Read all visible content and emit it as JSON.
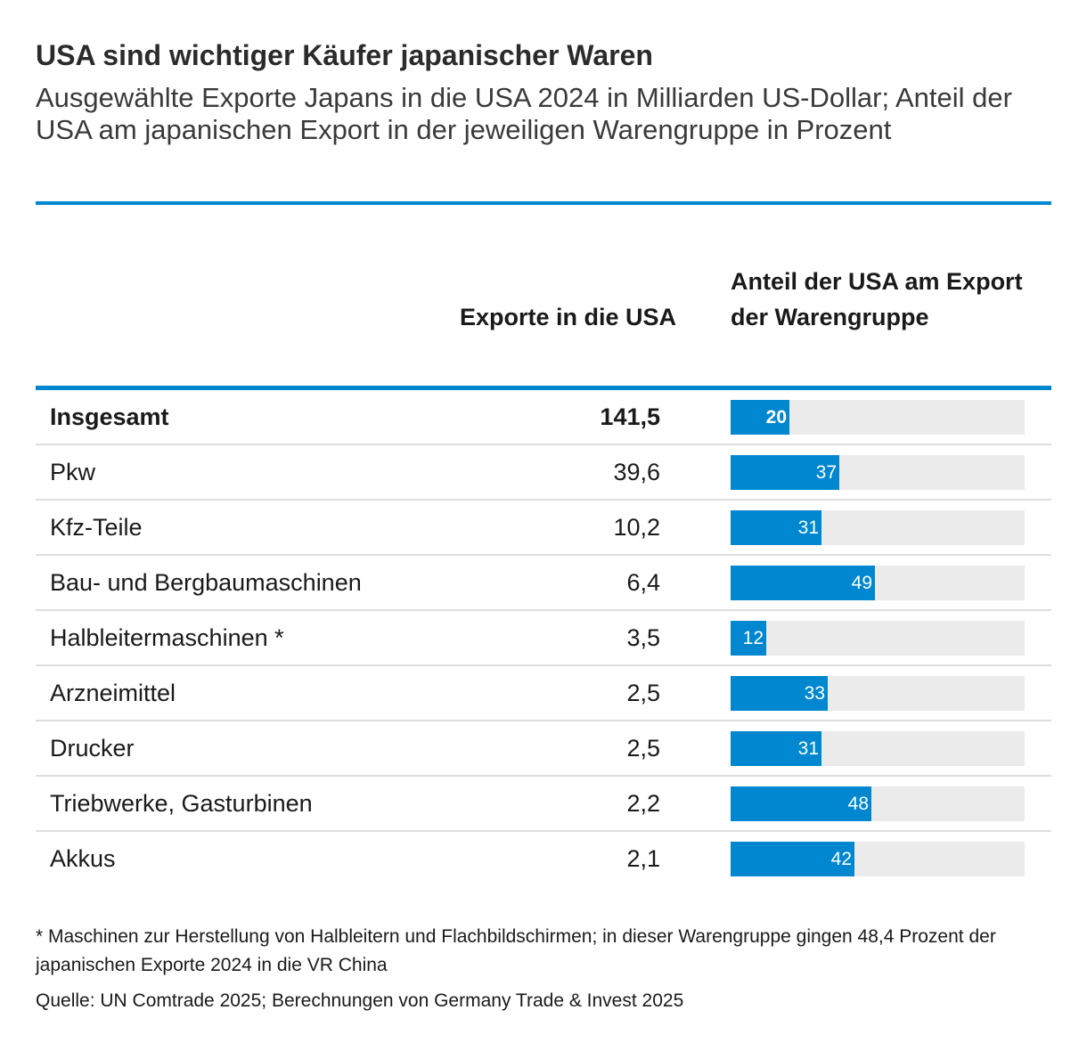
{
  "header": {
    "title": "USA sind wichtiger Käufer japanischer Waren",
    "subtitle": "Ausgewählte Exporte Japans in die USA 2024 in Milliarden US-Dollar; Anteil der USA am japanischen Export in der jeweiligen Warengruppe in Prozent"
  },
  "colors": {
    "accent": "#0087cf",
    "track": "#ebebeb",
    "divider": "#dedede"
  },
  "chart_data": {
    "type": "table",
    "title": "USA sind wichtiger Käufer japanischer Waren",
    "columns": {
      "category": "",
      "exports": "Exporte in die USA",
      "share": "Anteil der USA am Export der Warengruppe"
    },
    "share_axis_max": 100,
    "rows": [
      {
        "category": "Insgesamt",
        "exports": "141,5",
        "share": 20,
        "total": true
      },
      {
        "category": "Pkw",
        "exports": "39,6",
        "share": 37
      },
      {
        "category": "Kfz-Teile",
        "exports": "10,2",
        "share": 31
      },
      {
        "category": "Bau- und Bergbaumaschinen",
        "exports": "6,4",
        "share": 49
      },
      {
        "category": "Halbleitermaschinen *",
        "exports": "3,5",
        "share": 12
      },
      {
        "category": "Arzneimittel",
        "exports": "2,5",
        "share": 33
      },
      {
        "category": "Drucker",
        "exports": "2,5",
        "share": 31
      },
      {
        "category": "Triebwerke, Gasturbinen",
        "exports": "2,2",
        "share": 48
      },
      {
        "category": "Akkus",
        "exports": "2,1",
        "share": 42
      }
    ]
  },
  "footer": {
    "footnote": "* Maschinen zur Herstellung von Halbleitern und Flachbildschirmen; in dieser Warengruppe gingen 48,4 Prozent der japanischen Exporte 2024 in die VR China",
    "source": "Quelle: UN Comtrade 2025; Berechnungen von Germany Trade & Invest 2025"
  }
}
